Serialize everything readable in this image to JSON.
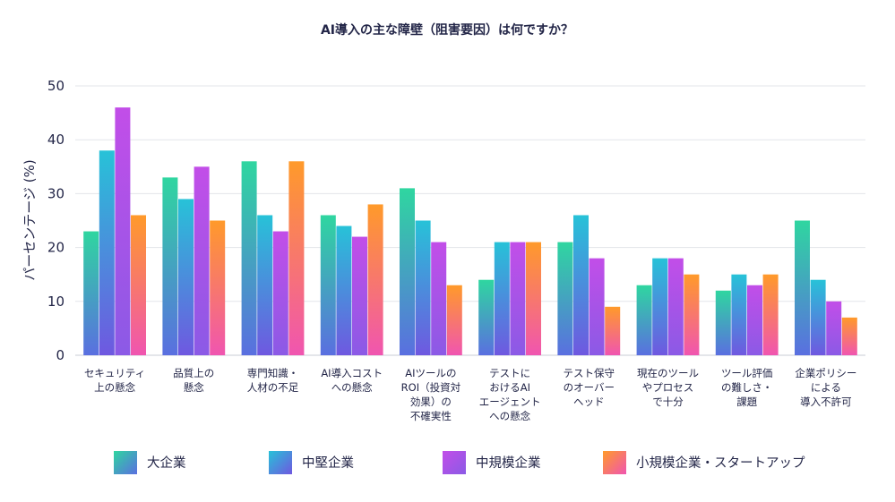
{
  "chart_data": {
    "type": "bar",
    "title": "AI導入の主な障壁（阻害要因）は何ですか？",
    "ylabel": "パーセンテージ (%)",
    "xlabel": "",
    "ylim": [
      0,
      50
    ],
    "yticks": [
      0,
      10,
      20,
      30,
      40,
      50
    ],
    "grid": true,
    "legend_position": "bottom",
    "categories": [
      [
        "セキュリティ",
        "上の懸念"
      ],
      [
        "品質上の",
        "懸念"
      ],
      [
        "専門知識・",
        "人材の不足"
      ],
      [
        "AI導入コスト",
        "への懸念"
      ],
      [
        "AIツールの",
        "ROI（投資対",
        "効果）の",
        "不確実性"
      ],
      [
        "テストに",
        "おけるAI",
        "エージェント",
        "への懸念"
      ],
      [
        "テスト保守",
        "のオーバー",
        "ヘッド"
      ],
      [
        "現在のツール",
        "やプロセス",
        "で十分"
      ],
      [
        "ツール評価",
        "の難しさ・",
        "課題"
      ],
      [
        "企業ポリシー",
        "による",
        "導入不許可"
      ]
    ],
    "series": [
      {
        "name": "大企業",
        "colors": [
          "#2fd6a0",
          "#5a6fe0"
        ],
        "values": [
          23,
          33,
          36,
          26,
          31,
          14,
          21,
          13,
          12,
          25
        ]
      },
      {
        "name": "中堅企業",
        "colors": [
          "#27c2d8",
          "#6f58e0"
        ],
        "values": [
          38,
          29,
          26,
          24,
          25,
          21,
          26,
          18,
          15,
          14
        ]
      },
      {
        "name": "中規模企業",
        "colors": [
          "#c24ee8",
          "#8b5ae6"
        ],
        "values": [
          46,
          35,
          23,
          22,
          21,
          21,
          18,
          18,
          13,
          10
        ]
      },
      {
        "name": "小規模企業・スタートアップ",
        "colors": [
          "#ff9a2a",
          "#f055b0"
        ],
        "values": [
          26,
          25,
          36,
          28,
          13,
          21,
          9,
          15,
          15,
          7
        ]
      }
    ]
  }
}
